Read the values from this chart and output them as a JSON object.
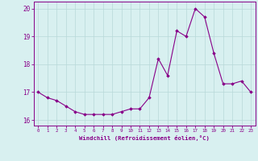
{
  "x": [
    0,
    1,
    2,
    3,
    4,
    5,
    6,
    7,
    8,
    9,
    10,
    11,
    12,
    13,
    14,
    15,
    16,
    17,
    18,
    19,
    20,
    21,
    22,
    23
  ],
  "y": [
    17.0,
    16.8,
    16.7,
    16.5,
    16.3,
    16.2,
    16.2,
    16.2,
    16.2,
    16.3,
    16.4,
    16.4,
    16.8,
    18.2,
    17.6,
    19.2,
    19.0,
    20.0,
    19.7,
    18.4,
    17.3,
    17.3,
    17.4,
    17.0
  ],
  "line_color": "#880088",
  "marker": "D",
  "marker_size": 1.8,
  "bg_color": "#d8f0f0",
  "grid_color": "#b8d8d8",
  "xlabel": "Windchill (Refroidissement éolien,°C)",
  "xlabel_color": "#880088",
  "tick_color": "#880088",
  "spine_color": "#880088",
  "ylim": [
    15.8,
    20.25
  ],
  "xlim": [
    -0.5,
    23.5
  ],
  "yticks": [
    16,
    17,
    18,
    19,
    20
  ],
  "xticks": [
    0,
    1,
    2,
    3,
    4,
    5,
    6,
    7,
    8,
    9,
    10,
    11,
    12,
    13,
    14,
    15,
    16,
    17,
    18,
    19,
    20,
    21,
    22,
    23
  ]
}
